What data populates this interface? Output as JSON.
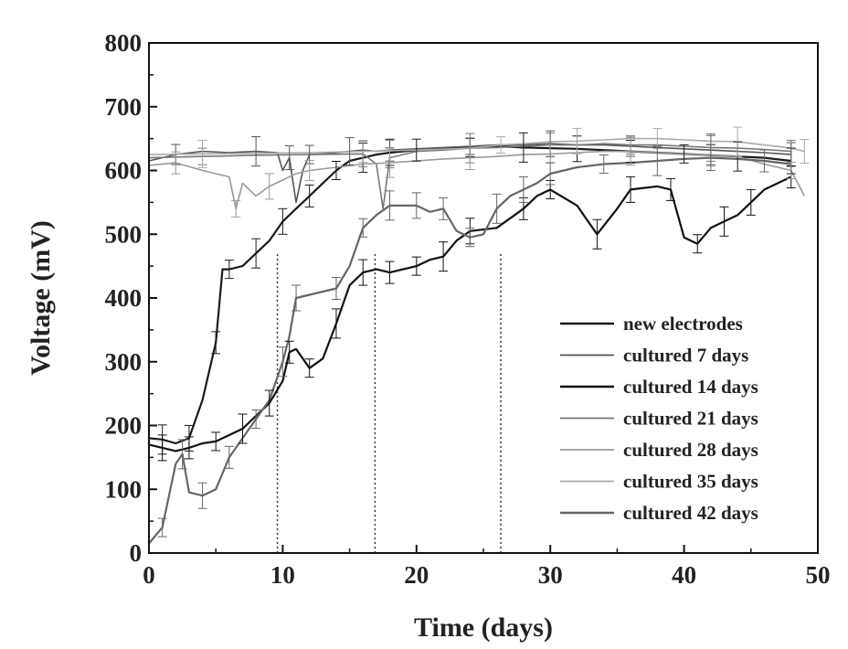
{
  "chart_data": {
    "type": "line",
    "title": "",
    "xlabel": "Time (days)",
    "ylabel": "Voltage (mV)",
    "xlim": [
      0,
      50
    ],
    "ylim": [
      0,
      800
    ],
    "xticks": [
      0,
      10,
      20,
      30,
      40,
      50
    ],
    "yticks": [
      0,
      100,
      200,
      300,
      400,
      500,
      600,
      700,
      800
    ],
    "grid": false,
    "legend_position": "lower-right",
    "error_bars": true,
    "vertical_markers": [
      9.6,
      16.9,
      26.3
    ],
    "series": [
      {
        "name": "new electrodes",
        "color": "#1a1a1a",
        "x": [
          0,
          1,
          2,
          3,
          4,
          5,
          5.5,
          6,
          7,
          8,
          9,
          10,
          11,
          12,
          13,
          14,
          15,
          16,
          17,
          18,
          19,
          20,
          22,
          24,
          26,
          28,
          30,
          32,
          34,
          36,
          38,
          40,
          42,
          44,
          46,
          48
        ],
        "y": [
          180,
          178,
          172,
          180,
          240,
          330,
          445,
          445,
          450,
          470,
          490,
          520,
          540,
          560,
          580,
          600,
          615,
          620,
          625,
          628,
          630,
          632,
          634,
          636,
          638,
          636,
          635,
          634,
          632,
          630,
          628,
          626,
          624,
          622,
          620,
          615
        ]
      },
      {
        "name": "cultured 7 days",
        "color": "#555555",
        "x": [
          0,
          2,
          4,
          6,
          8,
          9.6,
          10,
          10.5,
          11,
          11.5,
          12,
          13,
          14,
          15,
          16,
          17,
          18,
          20,
          22,
          24,
          26,
          28,
          30,
          32,
          34,
          36,
          38,
          40,
          42,
          44,
          46,
          48
        ],
        "y": [
          615,
          625,
          630,
          628,
          630,
          628,
          600,
          620,
          550,
          600,
          625,
          626,
          628,
          630,
          632,
          630,
          632,
          634,
          636,
          638,
          640,
          640,
          642,
          640,
          640,
          638,
          636,
          634,
          632,
          630,
          628,
          625
        ]
      },
      {
        "name": "cultured 14 days",
        "color": "#111111",
        "x": [
          0,
          1,
          2,
          3,
          4,
          5,
          6,
          7,
          8,
          9,
          10,
          10.5,
          11,
          12,
          13,
          14,
          15,
          16,
          17,
          18,
          19,
          20,
          21,
          22,
          23,
          24,
          26,
          28,
          29,
          30,
          32,
          33.5,
          35,
          36,
          38,
          39,
          40,
          41,
          42,
          43,
          44,
          45,
          46,
          48
        ],
        "y": [
          170,
          165,
          160,
          165,
          172,
          175,
          185,
          195,
          215,
          235,
          270,
          315,
          320,
          290,
          305,
          360,
          420,
          440,
          445,
          440,
          445,
          450,
          460,
          465,
          490,
          505,
          510,
          540,
          560,
          570,
          545,
          500,
          540,
          570,
          575,
          570,
          495,
          485,
          510,
          520,
          530,
          550,
          570,
          590
        ]
      },
      {
        "name": "cultured 21 days",
        "color": "#777777",
        "x": [
          0,
          4,
          8,
          12,
          16,
          17,
          17.5,
          18,
          20,
          22,
          24,
          26,
          28,
          30,
          32,
          34,
          36,
          38,
          40,
          42,
          44,
          46,
          48
        ],
        "y": [
          620,
          622,
          624,
          625,
          626,
          610,
          540,
          620,
          630,
          632,
          635,
          636,
          638,
          640,
          640,
          642,
          640,
          640,
          638,
          636,
          635,
          633,
          630
        ]
      },
      {
        "name": "cultured 28 days",
        "color": "#999999",
        "x": [
          0,
          2,
          4,
          6,
          6.5,
          7,
          8,
          9,
          10,
          11,
          12,
          14,
          16,
          18,
          20,
          22,
          24,
          26,
          28,
          30,
          32,
          34,
          36,
          38,
          40,
          42,
          44,
          46,
          48,
          49
        ],
        "y": [
          608,
          612,
          600,
          590,
          540,
          580,
          560,
          575,
          585,
          595,
          600,
          605,
          610,
          612,
          615,
          618,
          620,
          622,
          625,
          626,
          628,
          630,
          630,
          628,
          626,
          624,
          622,
          610,
          600,
          560
        ]
      },
      {
        "name": "cultured 35 days",
        "color": "#aaaaaa",
        "x": [
          0,
          4,
          8,
          12,
          16,
          20,
          24,
          26.3,
          28,
          30,
          32,
          34,
          36,
          38,
          40,
          42,
          44,
          46,
          48,
          49
        ],
        "y": [
          625,
          626,
          627,
          628,
          630,
          632,
          635,
          640,
          642,
          645,
          646,
          648,
          650,
          650,
          648,
          646,
          645,
          640,
          635,
          630
        ]
      },
      {
        "name": "cultured 42 days",
        "color": "#666666",
        "x": [
          0,
          1,
          2,
          2.5,
          3,
          4,
          5,
          6,
          7,
          8,
          9,
          10,
          10.5,
          11,
          12,
          14,
          15,
          16,
          17,
          18,
          19,
          20,
          21,
          22,
          23,
          24,
          25,
          26,
          27,
          28,
          29,
          30,
          32,
          34,
          36,
          38,
          40,
          42,
          44,
          46,
          48
        ],
        "y": [
          15,
          40,
          140,
          155,
          95,
          90,
          100,
          150,
          180,
          210,
          240,
          300,
          340,
          400,
          405,
          415,
          450,
          510,
          530,
          545,
          545,
          545,
          535,
          540,
          505,
          495,
          500,
          540,
          560,
          570,
          580,
          595,
          605,
          610,
          612,
          615,
          618,
          620,
          618,
          615,
          610
        ]
      }
    ]
  }
}
